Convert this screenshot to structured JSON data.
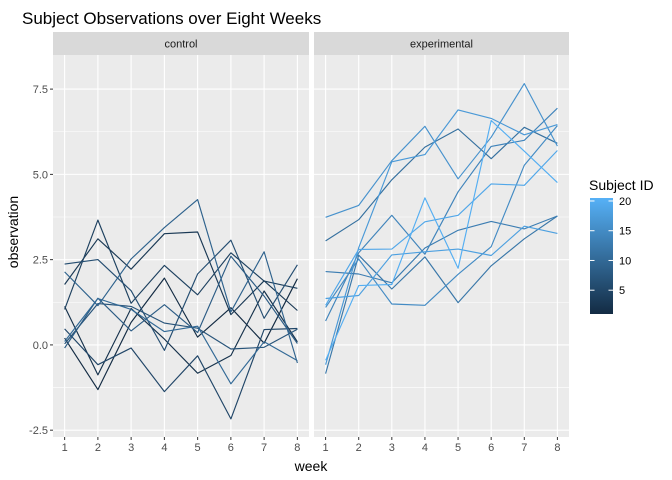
{
  "chart_data": {
    "type": "line",
    "title": "Subject Observations over Eight Weeks",
    "xlabel": "week",
    "ylabel": "observation",
    "x": [
      1,
      2,
      3,
      4,
      5,
      6,
      7,
      8
    ],
    "xlim": [
      0.65,
      8.35
    ],
    "ylim": [
      -2.7,
      8.5
    ],
    "yticks": [
      -2.5,
      0.0,
      2.5,
      5.0,
      7.5
    ],
    "ytick_labels": [
      "-2.5",
      "0.0",
      "2.5",
      "5.0",
      "7.5"
    ],
    "xtick_labels": [
      "1",
      "2",
      "3",
      "4",
      "5",
      "6",
      "7",
      "8"
    ],
    "grid": true,
    "legend": {
      "title": "Subject ID",
      "placement": "right",
      "breaks": [
        5,
        10,
        15,
        20
      ],
      "labels": [
        "5",
        "10",
        "15",
        "20"
      ],
      "range": [
        1,
        20.5
      ],
      "color_low": "#132B43",
      "color_high": "#56B1F7"
    },
    "facets": [
      {
        "label": "control",
        "series": [
          {
            "id": 1,
            "values": [
              0.2,
              -1.31,
              0.66,
              1.96,
              0.23,
              1.09,
              0.05,
              1.94
            ]
          },
          {
            "id": 2,
            "values": [
              1.13,
              -0.88,
              1.07,
              0.17,
              -0.83,
              -0.31,
              1.58,
              0.09
            ]
          },
          {
            "id": 3,
            "values": [
              1.77,
              3.11,
              2.22,
              3.26,
              3.31,
              0.89,
              1.88,
              1.01
            ]
          },
          {
            "id": 4,
            "values": [
              1.04,
              3.66,
              1.22,
              2.33,
              1.47,
              2.7,
              1.87,
              1.66
            ]
          },
          {
            "id": 5,
            "values": [
              0.47,
              -0.58,
              -0.09,
              -1.37,
              -0.32,
              -2.17,
              0.45,
              0.48
            ]
          },
          {
            "id": 6,
            "values": [
              2.37,
              2.5,
              1.59,
              -0.16,
              2.08,
              3.07,
              0.78,
              2.35
            ]
          },
          {
            "id": 7,
            "values": [
              0.03,
              1.21,
              1.13,
              0.64,
              0.49,
              -0.12,
              -0.07,
              0.46
            ]
          },
          {
            "id": 8,
            "values": [
              -0.09,
              1.37,
              0.41,
              1.18,
              0.36,
              2.6,
              1.43,
              0.04
            ]
          },
          {
            "id": 9,
            "values": [
              2.14,
              1.15,
              2.52,
              3.44,
              4.26,
              0.97,
              2.73,
              -0.53
            ]
          },
          {
            "id": 10,
            "values": [
              0.1,
              1.36,
              1.04,
              0.39,
              0.55,
              -1.14,
              0.09,
              -0.46
            ]
          }
        ]
      },
      {
        "label": "experimental",
        "series": [
          {
            "id": 11,
            "values": [
              3.05,
              3.67,
              4.84,
              5.8,
              6.33,
              5.46,
              6.38,
              5.91
            ]
          },
          {
            "id": 12,
            "values": [
              -0.84,
              2.63,
              1.64,
              2.58,
              1.24,
              2.32,
              3.11,
              3.78
            ]
          },
          {
            "id": 13,
            "values": [
              2.15,
              2.08,
              1.82,
              2.84,
              3.36,
              3.62,
              3.4,
              3.78
            ]
          },
          {
            "id": 14,
            "values": [
              0.7,
              2.7,
              3.8,
              2.66,
              4.49,
              5.82,
              6.0,
              6.94
            ]
          },
          {
            "id": 15,
            "values": [
              1.1,
              2.52,
              1.2,
              1.16,
              2.07,
              2.88,
              5.27,
              6.43
            ]
          },
          {
            "id": 16,
            "values": [
              3.74,
              4.09,
              5.4,
              6.41,
              4.87,
              6.09,
              7.66,
              5.83
            ]
          },
          {
            "id": 17,
            "values": [
              -0.58,
              2.85,
              5.37,
              5.58,
              6.89,
              6.64,
              6.16,
              6.46
            ]
          },
          {
            "id": 18,
            "values": [
              1.36,
              1.45,
              2.64,
              2.73,
              2.81,
              2.62,
              3.48,
              3.27
            ]
          },
          {
            "id": 19,
            "values": [
              1.16,
              2.8,
              2.81,
              3.61,
              3.8,
              4.72,
              4.68,
              5.7
            ]
          },
          {
            "id": 20,
            "values": [
              -0.45,
              1.74,
              1.77,
              4.31,
              2.25,
              6.58,
              5.68,
              4.76
            ]
          }
        ]
      }
    ]
  }
}
